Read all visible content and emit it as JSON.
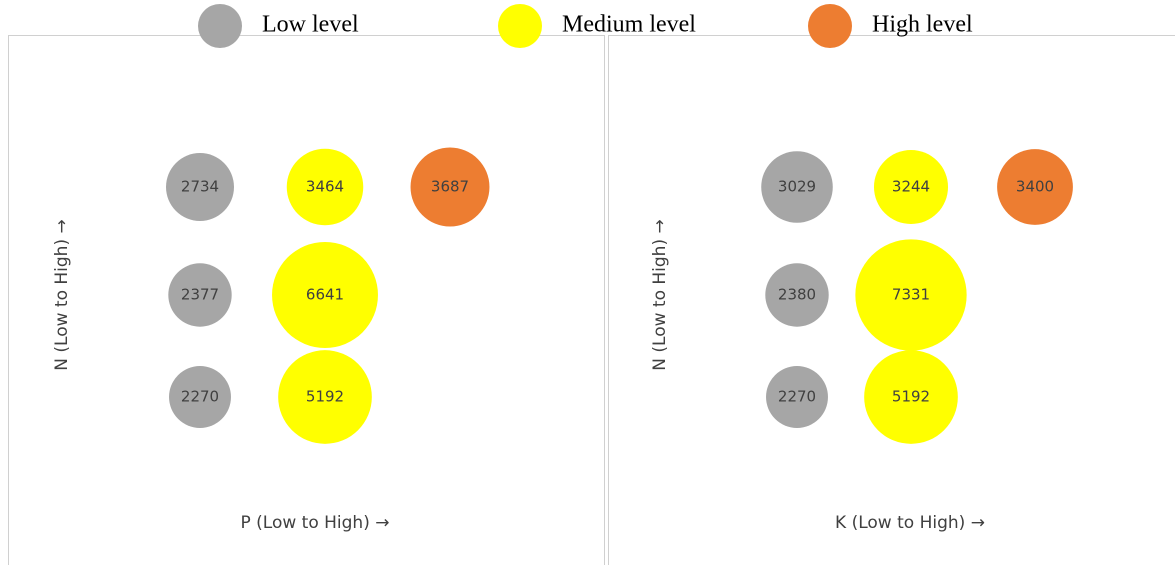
{
  "legend": [
    {
      "name": "Low level",
      "color": "#a6a6a6"
    },
    {
      "name": "Medium level",
      "color": "#ffff00"
    },
    {
      "name": "High level",
      "color": "#ed7d31"
    }
  ],
  "chart_data": [
    {
      "type": "bubble",
      "x_label": "P (Low to High) →",
      "y_label": "N (Low to High) →",
      "series": [
        {
          "color": "#a6a6a6",
          "values": [
            2734,
            2377,
            2270
          ]
        },
        {
          "color": "#ffff00",
          "values": [
            3464,
            6641,
            5192
          ]
        },
        {
          "color": "#ed7d31",
          "values": [
            3687,
            null,
            null
          ]
        }
      ]
    },
    {
      "type": "bubble",
      "x_label": "K (Low to High) →",
      "y_label": "N (Low to High) →",
      "series": [
        {
          "color": "#a6a6a6",
          "values": [
            3029,
            2380,
            2270
          ]
        },
        {
          "color": "#ffff00",
          "values": [
            3244,
            7331,
            5192
          ]
        },
        {
          "color": "#ed7d31",
          "values": [
            3400,
            null,
            null
          ]
        }
      ]
    }
  ]
}
